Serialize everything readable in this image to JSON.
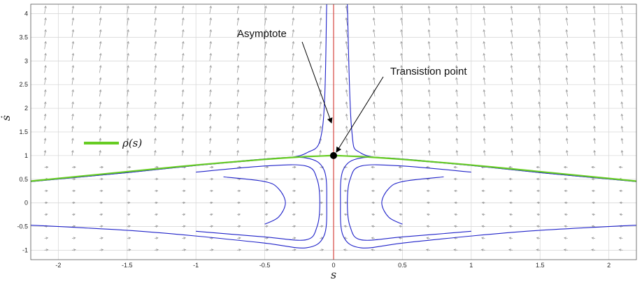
{
  "chart_data": {
    "type": "line",
    "title": "",
    "xlabel": "s",
    "ylabel": "ṡ",
    "xlim": [
      -2.2,
      2.2
    ],
    "ylim": [
      -1.2,
      4.2
    ],
    "grid": true,
    "x_ticks": [
      -2,
      -1.5,
      -1,
      -0.5,
      0,
      0.5,
      1,
      1.5,
      2
    ],
    "y_ticks": [
      -1,
      -0.5,
      0,
      0.5,
      1,
      1.5,
      2,
      2.5,
      3,
      3.5,
      4
    ],
    "x_tick_labels": [
      "-2",
      "-1.5",
      "-1",
      "-0.5",
      "0",
      "0.5",
      "1",
      "1.5",
      "2"
    ],
    "y_tick_labels": [
      "-1",
      "-0.5",
      "0",
      "0.5",
      "1",
      "1.5",
      "2",
      "2.5",
      "3",
      "3.5",
      "4"
    ],
    "legend": {
      "placement": "left",
      "entries": [
        {
          "label": "ρ(s)",
          "color": "#66cc22"
        }
      ]
    },
    "colors": {
      "trajectory": "#1f22c9",
      "rho": "#66cc22",
      "asymptote": "#d9534f",
      "field": "#9c9c9c",
      "point": "#000000"
    },
    "asymptote_x": 0,
    "transition_point": [
      0,
      1
    ],
    "series": [
      {
        "x": [
          -2.2,
          -1.5,
          -1,
          -0.5,
          -0.2,
          0,
          0.2,
          0.5,
          1,
          1.5,
          2.2
        ],
        "y": [
          0.46,
          0.66,
          0.8,
          0.93,
          0.98,
          1.0,
          0.98,
          0.93,
          0.8,
          0.66,
          0.46
        ]
      },
      {
        "x": [
          -2.2,
          -1.5,
          -1,
          -0.5,
          -0.2,
          -0.08,
          -0.05
        ],
        "y": [
          0.45,
          0.64,
          0.79,
          0.92,
          1.05,
          1.6,
          4.2
        ]
      },
      {
        "x": [
          0.1,
          0.13,
          0.2,
          0.5,
          1,
          1.5,
          2.2
        ],
        "y": [
          4.2,
          1.6,
          1.05,
          0.92,
          0.79,
          0.64,
          0.45
        ]
      },
      {
        "x": [
          -2.2,
          -1.5,
          -1,
          -0.5,
          -0.2,
          -0.07,
          -0.05,
          -0.07,
          -0.2,
          -0.5,
          -1,
          -1.5,
          -2.2
        ],
        "y": [
          -0.47,
          -0.58,
          -0.7,
          -0.85,
          -0.95,
          -0.7,
          0,
          0.7,
          0.95,
          0.92,
          0.79,
          0.64,
          0.45
        ]
      },
      {
        "x": [
          -1,
          -0.5,
          -0.2,
          -0.12,
          -0.1,
          -0.12,
          -0.2,
          -0.5,
          -1
        ],
        "y": [
          -0.6,
          -0.72,
          -0.78,
          -0.5,
          0,
          0.5,
          0.78,
          0.78,
          0.65
        ]
      },
      {
        "x": [
          -0.5,
          -0.4,
          -0.35,
          -0.4,
          -0.5,
          -0.8
        ],
        "y": [
          -0.45,
          -0.3,
          0,
          0.3,
          0.45,
          0.55
        ]
      },
      {
        "x": [
          2.2,
          1.5,
          1,
          0.5,
          0.2,
          0.07,
          0.05,
          0.07,
          0.2,
          0.5,
          1,
          1.5,
          2.2
        ],
        "y": [
          -0.47,
          -0.58,
          -0.7,
          -0.85,
          -0.95,
          -0.7,
          0,
          0.7,
          0.95,
          0.92,
          0.79,
          0.64,
          0.45
        ]
      },
      {
        "x": [
          1,
          0.5,
          0.2,
          0.12,
          0.1,
          0.12,
          0.2,
          0.5,
          1
        ],
        "y": [
          -0.6,
          -0.72,
          -0.78,
          -0.5,
          0,
          0.5,
          0.78,
          0.78,
          0.65
        ]
      },
      {
        "x": [
          0.5,
          0.4,
          0.35,
          0.4,
          0.5,
          0.8
        ],
        "y": [
          -0.45,
          -0.3,
          0,
          0.3,
          0.45,
          0.55
        ]
      }
    ],
    "rho": {
      "x": [
        -2.2,
        -1.5,
        -1,
        -0.5,
        -0.25,
        -0.1,
        0,
        0.1,
        0.25,
        0.5,
        1,
        1.5,
        2.2
      ],
      "y": [
        0.46,
        0.66,
        0.8,
        0.92,
        0.97,
        0.99,
        1.0,
        0.99,
        0.97,
        0.92,
        0.8,
        0.66,
        0.46
      ]
    },
    "annotations": [
      {
        "text": "Asymptote",
        "target": [
          0,
          1.1
        ]
      },
      {
        "text": "Transistion point",
        "target": [
          0,
          1.0
        ]
      }
    ]
  }
}
